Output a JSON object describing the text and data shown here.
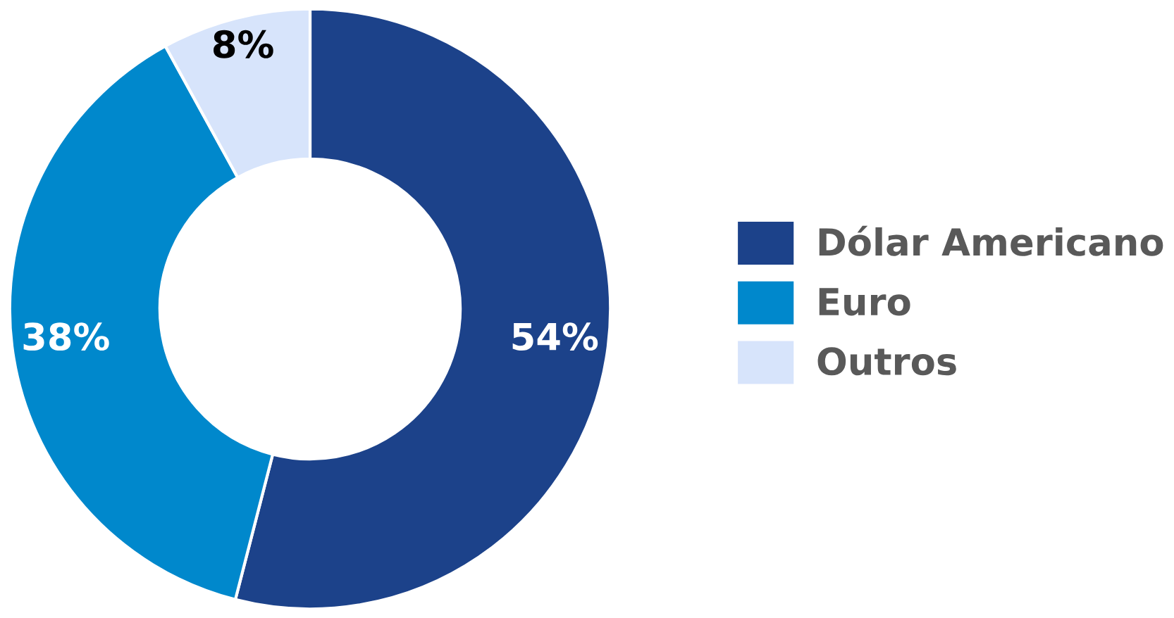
{
  "chart_data": {
    "type": "donut",
    "categories": [
      "Dólar Americano",
      "Euro",
      "Outros"
    ],
    "values": [
      54,
      38,
      8
    ],
    "colors": [
      "#1c428a",
      "#0088cc",
      "#d7e4fb"
    ],
    "value_labels": [
      "54%",
      "38%",
      "8%"
    ],
    "legend": "right"
  }
}
